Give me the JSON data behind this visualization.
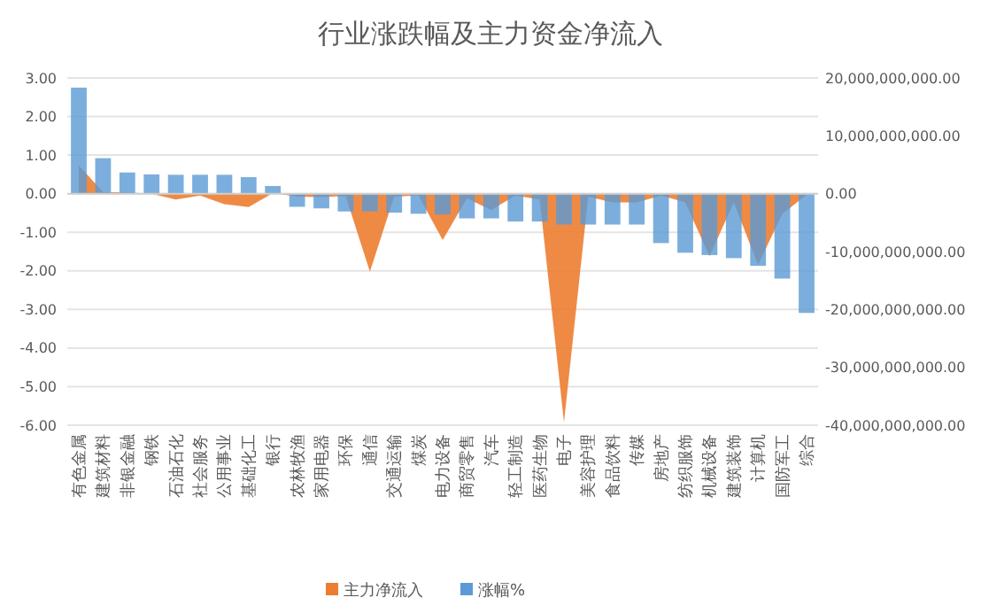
{
  "chart_data": {
    "type": "bar",
    "title": "行业涨跌幅及主力资金净流入",
    "categories": [
      "有色金属",
      "建筑材料",
      "非银金融",
      "钢铁",
      "石油石化",
      "社会服务",
      "公用事业",
      "基础化工",
      "银行",
      "农林牧渔",
      "家用电器",
      "环保",
      "通信",
      "交通运输",
      "煤炭",
      "电力设备",
      "商贸零售",
      "汽车",
      "轻工制造",
      "医药生物",
      "电子",
      "美容护理",
      "食品饮料",
      "传媒",
      "房地产",
      "纺织服饰",
      "机械设备",
      "建筑装饰",
      "计算机",
      "国防军工",
      "综合"
    ],
    "series": [
      {
        "name": "主力净流入",
        "type": "area",
        "axis": "y2",
        "color": "#ed7d31",
        "values": [
          4900000000,
          300000000,
          200000000,
          0,
          -1000000000,
          -300000000,
          -1800000000,
          -2300000000,
          100000000,
          -500000000,
          -600000000,
          -400000000,
          -13500000000,
          -500000000,
          -300000000,
          -8000000000,
          -800000000,
          -2800000000,
          -300000000,
          -1000000000,
          -39500000000,
          -500000000,
          -1500000000,
          -1500000000,
          -300000000,
          -1500000000,
          -10800000000,
          -1500000000,
          -12300000000,
          -3500000000,
          -200000000
        ]
      },
      {
        "name": "涨幅%",
        "color": "#5b9bd5",
        "values": [
          2.75,
          0.92,
          0.55,
          0.5,
          0.49,
          0.49,
          0.49,
          0.43,
          0.2,
          -0.34,
          -0.38,
          -0.46,
          -0.46,
          -0.49,
          -0.52,
          -0.54,
          -0.64,
          -0.64,
          -0.72,
          -0.72,
          -0.8,
          -0.8,
          -0.8,
          -0.8,
          -1.28,
          -1.53,
          -1.59,
          -1.67,
          -1.87,
          -2.2,
          -3.09
        ]
      }
    ],
    "ylim": [
      -6,
      3
    ],
    "yticks": [
      {
        "value": 3,
        "label": "3.00"
      },
      {
        "value": 2,
        "label": "2.00"
      },
      {
        "value": 1,
        "label": "1.00"
      },
      {
        "value": 0,
        "label": "0.00"
      },
      {
        "value": -1,
        "label": "-1.00"
      },
      {
        "value": -2,
        "label": "-2.00"
      },
      {
        "value": -3,
        "label": "-3.00"
      },
      {
        "value": -4,
        "label": "-4.00"
      },
      {
        "value": -5,
        "label": "-5.00"
      },
      {
        "value": -6,
        "label": "-6.00"
      }
    ],
    "y2lim": [
      -40000000000,
      20000000000
    ],
    "y2ticks": [
      {
        "value": 20000000000,
        "label": "20,000,000,000.00"
      },
      {
        "value": 10000000000,
        "label": "10,000,000,000.00"
      },
      {
        "value": 0,
        "label": "0.00"
      },
      {
        "value": -10000000000,
        "label": "-10,000,000,000.00"
      },
      {
        "value": -20000000000,
        "label": "-20,000,000,000.00"
      },
      {
        "value": -30000000000,
        "label": "-30,000,000,000.00"
      },
      {
        "value": -40000000000,
        "label": "-40,000,000,000.00"
      }
    ],
    "grid": "y",
    "legend": "bottom"
  }
}
